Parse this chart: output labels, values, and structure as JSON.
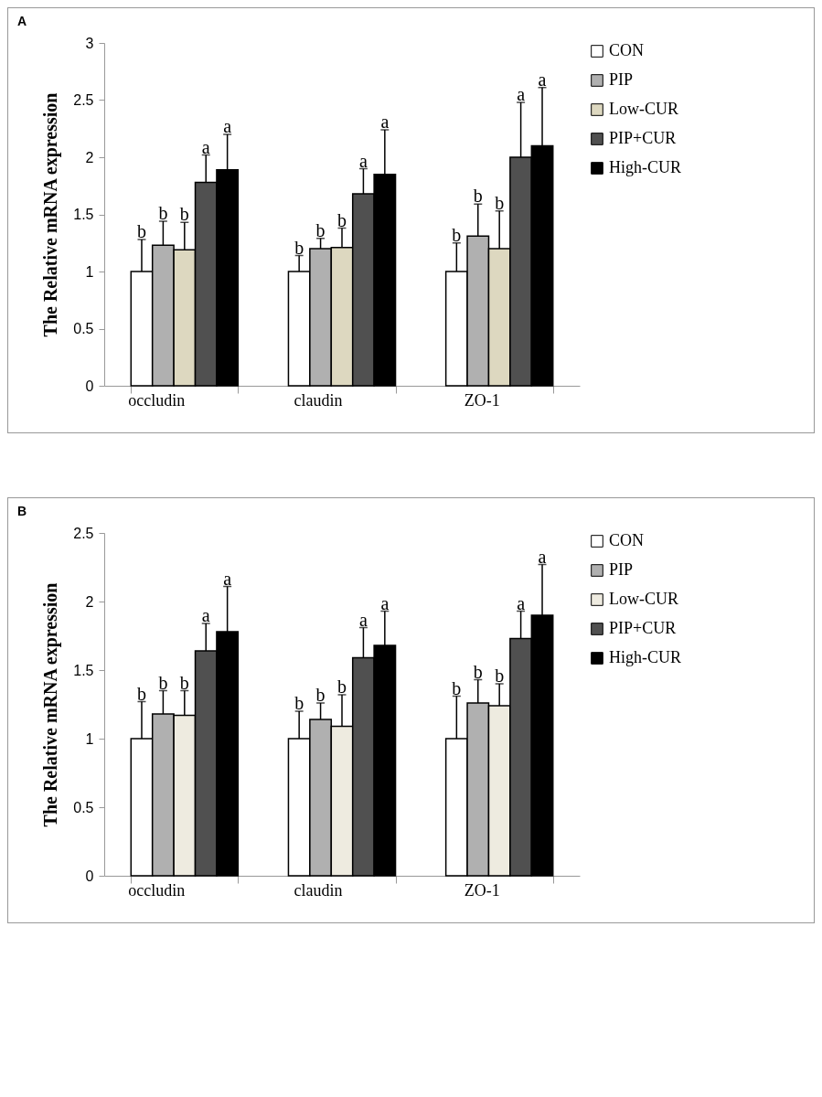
{
  "chart_data": [
    {
      "type": "bar",
      "title": "A",
      "ylabel": "The Relative mRNA expression",
      "categories": [
        "occludin",
        "claudin",
        "ZO-1"
      ],
      "ylim": [
        0,
        3
      ],
      "yticks": [
        0,
        0.5,
        1,
        1.5,
        2,
        2.5,
        3
      ],
      "grid": false,
      "legend": "right",
      "series": [
        {
          "name": "CON",
          "color": "#ffffff",
          "values": [
            1.0,
            1.0,
            1.0
          ],
          "errors": [
            0.28,
            0.14,
            0.25
          ],
          "value_labels": [
            "b",
            "b",
            "b"
          ]
        },
        {
          "name": "PIP",
          "color": "#b0b0b0",
          "values": [
            1.23,
            1.2,
            1.31
          ],
          "errors": [
            0.21,
            0.09,
            0.28
          ],
          "value_labels": [
            "b",
            "b",
            "b"
          ]
        },
        {
          "name": "Low-CUR",
          "color": "#ddd8c0",
          "values": [
            1.19,
            1.21,
            1.2
          ],
          "errors": [
            0.24,
            0.17,
            0.33
          ],
          "value_labels": [
            "b",
            "b",
            "b"
          ]
        },
        {
          "name": "PIP+CUR",
          "color": "#505050",
          "values": [
            1.78,
            1.68,
            2.0
          ],
          "errors": [
            0.24,
            0.22,
            0.48
          ],
          "value_labels": [
            "a",
            "a",
            "a"
          ]
        },
        {
          "name": "High-CUR",
          "color": "#000000",
          "values": [
            1.89,
            1.85,
            2.1
          ],
          "errors": [
            0.31,
            0.39,
            0.51
          ],
          "value_labels": [
            "a",
            "a",
            "a"
          ]
        }
      ]
    },
    {
      "type": "bar",
      "title": "B",
      "ylabel": "The Relative mRNA expression",
      "categories": [
        "occludin",
        "claudin",
        "ZO-1"
      ],
      "ylim": [
        0,
        2.5
      ],
      "yticks": [
        0,
        0.5,
        1,
        1.5,
        2,
        2.5
      ],
      "grid": false,
      "legend": "right",
      "series": [
        {
          "name": "CON",
          "color": "#ffffff",
          "values": [
            1.0,
            1.0,
            1.0
          ],
          "errors": [
            0.27,
            0.2,
            0.31
          ],
          "value_labels": [
            "b",
            "b",
            "b"
          ]
        },
        {
          "name": "PIP",
          "color": "#b0b0b0",
          "values": [
            1.18,
            1.14,
            1.26
          ],
          "errors": [
            0.17,
            0.12,
            0.17
          ],
          "value_labels": [
            "b",
            "b",
            "b"
          ]
        },
        {
          "name": "Low-CUR",
          "color": "#eeebe0",
          "values": [
            1.17,
            1.09,
            1.24
          ],
          "errors": [
            0.18,
            0.23,
            0.16
          ],
          "value_labels": [
            "b",
            "b",
            "b"
          ]
        },
        {
          "name": "PIP+CUR",
          "color": "#505050",
          "values": [
            1.64,
            1.59,
            1.73
          ],
          "errors": [
            0.2,
            0.22,
            0.2
          ],
          "value_labels": [
            "a",
            "a",
            "a"
          ]
        },
        {
          "name": "High-CUR",
          "color": "#000000",
          "values": [
            1.78,
            1.68,
            1.9
          ],
          "errors": [
            0.33,
            0.25,
            0.37
          ],
          "value_labels": [
            "a",
            "a",
            "a"
          ]
        }
      ]
    }
  ]
}
